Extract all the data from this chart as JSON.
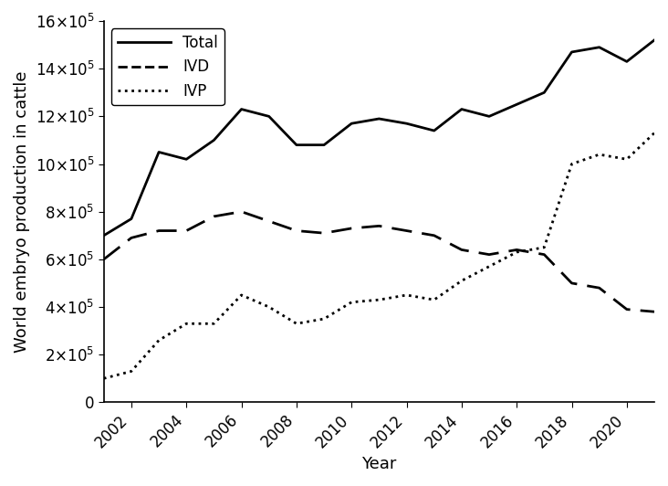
{
  "years": [
    2001,
    2002,
    2003,
    2004,
    2005,
    2006,
    2007,
    2008,
    2009,
    2010,
    2011,
    2012,
    2013,
    2014,
    2015,
    2016,
    2017,
    2018,
    2019,
    2020,
    2021
  ],
  "total": [
    700000,
    770000,
    1050000,
    1020000,
    1100000,
    1230000,
    1200000,
    1080000,
    1080000,
    1170000,
    1190000,
    1170000,
    1140000,
    1230000,
    1200000,
    1250000,
    1300000,
    1470000,
    1490000,
    1430000,
    1520000
  ],
  "ivd": [
    600000,
    690000,
    720000,
    720000,
    780000,
    800000,
    760000,
    720000,
    710000,
    730000,
    740000,
    720000,
    700000,
    640000,
    620000,
    640000,
    620000,
    500000,
    480000,
    390000,
    380000
  ],
  "ivp": [
    100000,
    130000,
    260000,
    330000,
    330000,
    450000,
    400000,
    330000,
    350000,
    420000,
    430000,
    450000,
    430000,
    510000,
    570000,
    630000,
    650000,
    1000000,
    1040000,
    1020000,
    1130000
  ],
  "ylabel": "World embryo production in cattle",
  "xlabel": "Year",
  "legend_labels": [
    "Total",
    "IVD",
    "IVP"
  ],
  "ylim": [
    0,
    1600000
  ],
  "yticks": [
    0,
    200000,
    400000,
    600000,
    800000,
    1000000,
    1200000,
    1400000,
    1600000
  ],
  "xtick_years": [
    2002,
    2004,
    2006,
    2008,
    2010,
    2012,
    2014,
    2016,
    2018,
    2020
  ],
  "line_color": "#000000",
  "bg_color": "#ffffff",
  "linewidth": 2.0,
  "fontsize_ticks": 12,
  "fontsize_labels": 13,
  "fontsize_legend": 12
}
